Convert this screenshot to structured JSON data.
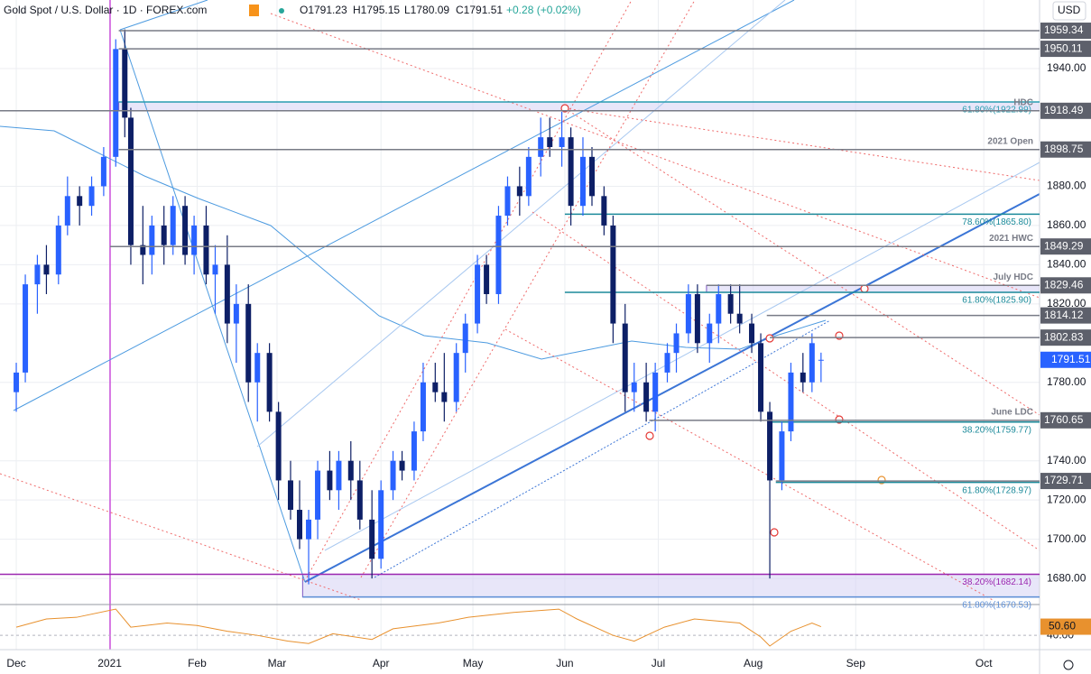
{
  "header": {
    "symbol": "Gold Spot / U.S. Dollar · 1D · FOREX.com",
    "open": "O1791.23",
    "high": "H1795.15",
    "low": "L1780.09",
    "close": "C1791.51",
    "change": "+0.28 (+0.02%)",
    "currency": "USD"
  },
  "chart_data": {
    "type": "candlestick",
    "up_color": "#2962ff",
    "down_color": "#0d1f66",
    "x": [
      0,
      3,
      7,
      10,
      14,
      17,
      21,
      25,
      29,
      33,
      36,
      38,
      42,
      45,
      49,
      52,
      56,
      59,
      63,
      66,
      70,
      73,
      77,
      80,
      84,
      87,
      91,
      94,
      97,
      100,
      104,
      107,
      111,
      114,
      118,
      121,
      125,
      128,
      132,
      135,
      139,
      142,
      146,
      149,
      153,
      156,
      160,
      163,
      167,
      170,
      174,
      177,
      181,
      184,
      188,
      191,
      195,
      198,
      202,
      205,
      209,
      212,
      216,
      219,
      223,
      226,
      230,
      233,
      237,
      240,
      244,
      247,
      250,
      254,
      257,
      261,
      264,
      267
    ],
    "open": [
      1775,
      1785,
      1830,
      1840,
      1835,
      1860,
      1875,
      1870,
      1880,
      1895,
      1950,
      1915,
      1850,
      1845,
      1860,
      1850,
      1870,
      1845,
      1860,
      1835,
      1840,
      1810,
      1820,
      1780,
      1795,
      1765,
      1730,
      1715,
      1700,
      1710,
      1735,
      1725,
      1740,
      1730,
      1710,
      1690,
      1725,
      1740,
      1735,
      1755,
      1780,
      1775,
      1770,
      1795,
      1810,
      1840,
      1825,
      1865,
      1880,
      1875,
      1895,
      1905,
      1900,
      1905,
      1870,
      1895,
      1875,
      1860,
      1810,
      1775,
      1780,
      1765,
      1785,
      1795,
      1805,
      1825,
      1800,
      1810,
      1825,
      1815,
      1810,
      1800,
      1765,
      1730,
      1755,
      1785,
      1780,
      1791.23
    ],
    "high": [
      1790,
      1835,
      1845,
      1850,
      1865,
      1885,
      1880,
      1885,
      1900,
      1955,
      1960,
      1920,
      1870,
      1865,
      1870,
      1875,
      1875,
      1865,
      1870,
      1850,
      1855,
      1830,
      1830,
      1800,
      1800,
      1770,
      1740,
      1730,
      1715,
      1740,
      1745,
      1745,
      1750,
      1740,
      1725,
      1730,
      1745,
      1745,
      1760,
      1790,
      1790,
      1795,
      1800,
      1815,
      1845,
      1845,
      1870,
      1885,
      1890,
      1900,
      1915,
      1915,
      1918,
      1910,
      1905,
      1900,
      1880,
      1865,
      1820,
      1790,
      1790,
      1790,
      1800,
      1810,
      1830,
      1830,
      1815,
      1830,
      1830,
      1830,
      1815,
      1805,
      1770,
      1760,
      1790,
      1795,
      1805,
      1795.15
    ],
    "low": [
      1765,
      1780,
      1815,
      1825,
      1830,
      1855,
      1860,
      1865,
      1875,
      1890,
      1905,
      1840,
      1830,
      1835,
      1840,
      1845,
      1840,
      1835,
      1830,
      1815,
      1800,
      1790,
      1770,
      1760,
      1760,
      1720,
      1710,
      1695,
      1677,
      1700,
      1720,
      1715,
      1720,
      1705,
      1680,
      1685,
      1720,
      1730,
      1730,
      1750,
      1770,
      1760,
      1765,
      1785,
      1805,
      1820,
      1820,
      1860,
      1865,
      1870,
      1885,
      1895,
      1890,
      1860,
      1865,
      1870,
      1855,
      1800,
      1765,
      1765,
      1760,
      1755,
      1780,
      1785,
      1800,
      1795,
      1790,
      1800,
      1810,
      1805,
      1795,
      1760,
      1680,
      1725,
      1750,
      1775,
      1775,
      1780.09
    ],
    "close": [
      1785,
      1830,
      1840,
      1835,
      1860,
      1875,
      1870,
      1880,
      1895,
      1950,
      1915,
      1850,
      1845,
      1860,
      1850,
      1870,
      1845,
      1860,
      1835,
      1840,
      1810,
      1820,
      1780,
      1795,
      1765,
      1730,
      1715,
      1700,
      1710,
      1735,
      1725,
      1740,
      1730,
      1710,
      1690,
      1725,
      1740,
      1735,
      1755,
      1780,
      1775,
      1770,
      1795,
      1810,
      1840,
      1825,
      1865,
      1880,
      1875,
      1895,
      1905,
      1900,
      1905,
      1870,
      1895,
      1875,
      1860,
      1810,
      1775,
      1780,
      1765,
      1785,
      1795,
      1805,
      1825,
      1800,
      1810,
      1825,
      1815,
      1810,
      1800,
      1765,
      1730,
      1755,
      1785,
      1780,
      1800,
      1791.51
    ],
    "last_label": "1791.51",
    "xlim": [
      -5.4,
      339.5
    ],
    "xticks": [
      {
        "value": 0,
        "label": "Dec"
      },
      {
        "value": 31,
        "label": "2021"
      },
      {
        "value": 60,
        "label": "Feb"
      },
      {
        "value": 86.5,
        "label": "Mar"
      },
      {
        "value": 121,
        "label": "Apr"
      },
      {
        "value": 151.5,
        "label": "May"
      },
      {
        "value": 182,
        "label": "Jun"
      },
      {
        "value": 213,
        "label": "Jul"
      },
      {
        "value": 244.5,
        "label": "Aug"
      },
      {
        "value": 278.5,
        "label": "Sep"
      },
      {
        "value": 321,
        "label": "Oct"
      }
    ],
    "ylim": [
      1669,
      1975
    ],
    "yticks": [
      {
        "value": 1940,
        "label": "1940.00"
      },
      {
        "value": 1880,
        "label": "1880.00"
      },
      {
        "value": 1860,
        "label": "1860.00"
      },
      {
        "value": 1840,
        "label": "1840.00"
      },
      {
        "value": 1820,
        "label": "1820.00"
      },
      {
        "value": 1780,
        "label": "1780.00"
      },
      {
        "value": 1740,
        "label": "1740.00"
      },
      {
        "value": 1720,
        "label": "1720.00"
      },
      {
        "value": 1700,
        "label": "1700.00"
      },
      {
        "value": 1680,
        "label": "1680.00"
      }
    ],
    "grid": true,
    "levels": [
      {
        "value": 1959.34,
        "label": "1959.34",
        "from": 34
      },
      {
        "value": 1950.11,
        "label": "1950.11",
        "from": 34
      },
      {
        "value": 1918.49,
        "label": "1918.49",
        "note": "HDC",
        "from": -6
      },
      {
        "value": 1898.75,
        "label": "1898.75",
        "note": "2021 Open",
        "from": 34
      },
      {
        "value": 1849.29,
        "label": "1849.29",
        "note": "2021 HWC",
        "from": 31
      },
      {
        "value": 1829.46,
        "label": "1829.46",
        "note": "July HDC",
        "from": 229
      },
      {
        "value": 1814.12,
        "label": "1814.12",
        "from": 249
      },
      {
        "value": 1802.83,
        "label": "1802.83",
        "from": 250
      },
      {
        "value": 1760.65,
        "label": "1760.65",
        "note": "June LDC",
        "from": 210
      },
      {
        "value": 1729.71,
        "label": "1729.71",
        "from": 252
      }
    ],
    "fibs": [
      {
        "value": 1922.99,
        "label": "61.80%(1922.99)",
        "from": 34,
        "color": "#2a9db0"
      },
      {
        "value": 1865.8,
        "label": "78.60%(1865.80)",
        "from": 182,
        "color": "#1b8a9a"
      },
      {
        "value": 1825.9,
        "label": "61.80%(1825.90)",
        "from": 182,
        "color": "#1b8a9a"
      },
      {
        "value": 1759.77,
        "label": "38.20%(1759.77)",
        "from": 250,
        "color": "#1b8a9a"
      },
      {
        "value": 1728.97,
        "label": "61.80%(1728.97)",
        "from": 252,
        "color": "#1b8a9a"
      },
      {
        "value": 1682.14,
        "label": "38.20%(1682.14)",
        "from": -6,
        "color": "#9c27b0"
      },
      {
        "value": 1670.53,
        "label": "61.80%(1670.53)",
        "from": 95,
        "color": "#5d8fd6"
      }
    ],
    "rsi": {
      "x": [
        0,
        10,
        20,
        33,
        38,
        50,
        60,
        70,
        80,
        90,
        97,
        105,
        118,
        125,
        140,
        150,
        165,
        180,
        186,
        198,
        205,
        215,
        225,
        240,
        247,
        250,
        257,
        264,
        267
      ],
      "values": [
        50,
        60,
        62,
        72,
        50,
        55,
        52,
        45,
        40,
        33,
        30,
        42,
        35,
        48,
        55,
        62,
        68,
        72,
        60,
        40,
        33,
        50,
        60,
        55,
        38,
        27,
        45,
        55,
        50.6
      ],
      "value_label": "50.60",
      "color": "#e8912e",
      "ylim": [
        27,
        71
      ],
      "yticks": [
        {
          "value": 40,
          "label": "40.00"
        }
      ]
    }
  }
}
